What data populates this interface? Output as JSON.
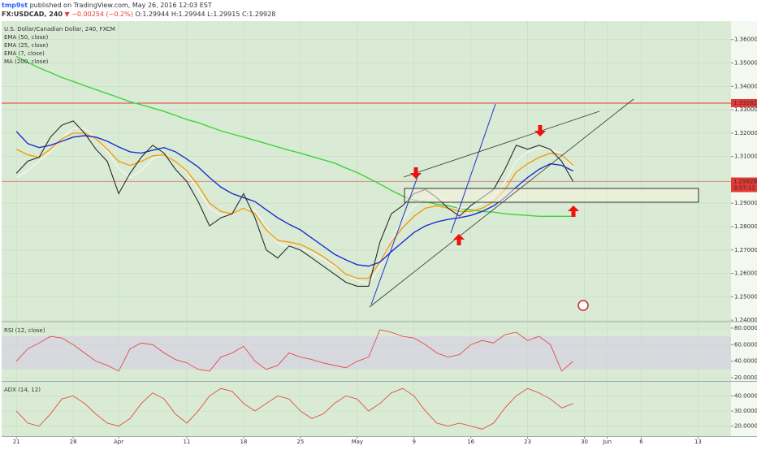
{
  "header": {
    "author": "tmp9st",
    "published": "published on TradingView.com, May 26, 2016 12:03 EST",
    "symbol": "FX:USDCAD, 240",
    "change": "▼ −0.00254 (−0.2%)",
    "ohlc": "O:1.29944 H:1.29944 L:1.29915 C:1.29928"
  },
  "chart_data": [
    {
      "type": "line",
      "title": "U.S. Dollar/Canadian Dollar, 240, FXCM",
      "legend": "top-left",
      "grid": true,
      "x": [
        0,
        1,
        2,
        3,
        4,
        5,
        6,
        7,
        8,
        9,
        10,
        11,
        12,
        13,
        14,
        15,
        16,
        17,
        18,
        19,
        20,
        21,
        22,
        23,
        24,
        25,
        26,
        27,
        28,
        29,
        30,
        31,
        32,
        33,
        34,
        35,
        36,
        37,
        38,
        39,
        40,
        41,
        42,
        43,
        44,
        45,
        46,
        47,
        48,
        49
      ],
      "xlim": [
        -1.3,
        62.9
      ],
      "xticks": [
        {
          "value": 0,
          "label": "21"
        },
        {
          "value": 5,
          "label": "28"
        },
        {
          "value": 9,
          "label": "Apr"
        },
        {
          "value": 15,
          "label": "11"
        },
        {
          "value": 20,
          "label": "18"
        },
        {
          "value": 25,
          "label": "25"
        },
        {
          "value": 30,
          "label": "May"
        },
        {
          "value": 35,
          "label": "9"
        },
        {
          "value": 40,
          "label": "16"
        },
        {
          "value": 45,
          "label": "23"
        },
        {
          "value": 50,
          "label": "30"
        },
        {
          "value": 52,
          "label": "Jun"
        },
        {
          "value": 55,
          "label": "6"
        },
        {
          "value": 60,
          "label": "13"
        }
      ],
      "ylim": [
        1.2397,
        1.3679
      ],
      "yticks": [
        {
          "value": 1.24,
          "label": "1.24000"
        },
        {
          "value": 1.25,
          "label": "1.25000"
        },
        {
          "value": 1.26,
          "label": "1.26000"
        },
        {
          "value": 1.27,
          "label": "1.27000"
        },
        {
          "value": 1.28,
          "label": "1.28000"
        },
        {
          "value": 1.29,
          "label": "1.29000"
        },
        {
          "value": 1.3,
          "label": "1.30000"
        },
        {
          "value": 1.31,
          "label": "1.31000"
        },
        {
          "value": 1.32,
          "label": "1.32000"
        },
        {
          "value": 1.33,
          "label": "1.33000"
        },
        {
          "value": 1.34,
          "label": "1.34000"
        },
        {
          "value": 1.35,
          "label": "1.35000"
        },
        {
          "value": 1.36,
          "label": "1.36000"
        }
      ],
      "hlines": [
        {
          "value": 1.33282,
          "color": "#e53935"
        },
        {
          "value": 1.29928,
          "color": "#e53935",
          "timer": "3:57:12"
        }
      ],
      "color": "#2b2b2b",
      "values": [
        1.3028,
        1.308,
        1.3097,
        1.3183,
        1.3234,
        1.3252,
        1.32,
        1.3131,
        1.3079,
        1.2941,
        1.3028,
        1.3097,
        1.3148,
        1.3114,
        1.3045,
        1.2993,
        1.2907,
        1.2803,
        1.2838,
        1.2855,
        1.2941,
        1.2838,
        1.27,
        1.2666,
        1.2717,
        1.27,
        1.2666,
        1.2631,
        1.2597,
        1.2562,
        1.2545,
        1.2545,
        1.2734,
        1.2855,
        1.289,
        1.2941,
        1.2959,
        1.2924,
        1.2879,
        1.2845,
        1.289,
        1.2924,
        1.2959,
        1.3045,
        1.3148,
        1.3131,
        1.3148,
        1.3131,
        1.3079,
        1.2993
      ],
      "series": [
        {
          "name": "EMA (50, close)",
          "color": "#1f2ecf",
          "values": [
            1.3207,
            1.3155,
            1.3138,
            1.3148,
            1.3165,
            1.3183,
            1.3189,
            1.3183,
            1.3165,
            1.3141,
            1.312,
            1.3114,
            1.3127,
            1.3138,
            1.312,
            1.3089,
            1.3055,
            1.301,
            1.2969,
            1.2941,
            1.2924,
            1.2907,
            1.2872,
            1.2838,
            1.281,
            1.2786,
            1.2751,
            1.2717,
            1.2682,
            1.2658,
            1.2637,
            1.2631,
            1.2648,
            1.2693,
            1.2734,
            1.2775,
            1.2803,
            1.282,
            1.2831,
            1.2838,
            1.2848,
            1.2865,
            1.2889,
            1.2924,
            1.2969,
            1.301,
            1.3045,
            1.3069,
            1.3062,
            1.3038
          ]
        },
        {
          "name": "EMA (25, close)",
          "color": "#f39c12",
          "values": [
            1.3131,
            1.3107,
            1.3096,
            1.3131,
            1.3176,
            1.32,
            1.32,
            1.3176,
            1.3131,
            1.3079,
            1.3062,
            1.3079,
            1.3103,
            1.3107,
            1.3079,
            1.3038,
            1.2976,
            1.29,
            1.2865,
            1.2855,
            1.2879,
            1.2855,
            1.2786,
            1.2741,
            1.2734,
            1.2724,
            1.27,
            1.2672,
            1.2637,
            1.2596,
            1.2579,
            1.2579,
            1.2648,
            1.2734,
            1.2796,
            1.2844,
            1.2879,
            1.2889,
            1.2879,
            1.2865,
            1.2865,
            1.2879,
            1.2907,
            1.2958,
            1.3034,
            1.3069,
            1.3096,
            1.3114,
            1.3107,
            1.3062
          ]
        },
        {
          "name": "EMA (7, close)",
          "color": "#f4f4ee",
          "values": [
            1.301,
            1.304,
            1.308,
            1.312,
            1.318,
            1.322,
            1.322,
            1.318,
            1.312,
            1.305,
            1.301,
            1.304,
            1.309,
            1.311,
            1.308,
            1.303,
            1.296,
            1.288,
            1.285,
            1.285,
            1.288,
            1.287,
            1.28,
            1.273,
            1.271,
            1.2705,
            1.269,
            1.266,
            1.263,
            1.2595,
            1.257,
            1.2555,
            1.263,
            1.274,
            1.283,
            1.289,
            1.2925,
            1.293,
            1.2905,
            1.288,
            1.288,
            1.29,
            1.293,
            1.299,
            1.308,
            1.312,
            1.3135,
            1.3135,
            1.311,
            1.305
          ]
        },
        {
          "name": "MA (200, close)",
          "color": "#3ed33e",
          "values": [
            1.3528,
            1.3503,
            1.3479,
            1.3459,
            1.3438,
            1.3421,
            1.3403,
            1.3386,
            1.3369,
            1.3352,
            1.3334,
            1.3321,
            1.3307,
            1.3293,
            1.3276,
            1.3258,
            1.3245,
            1.3227,
            1.321,
            1.3196,
            1.3183,
            1.3169,
            1.3155,
            1.3141,
            1.3127,
            1.3114,
            1.31,
            1.3086,
            1.3072,
            1.3051,
            1.3031,
            1.3007,
            1.2982,
            1.2955,
            1.2931,
            1.2913,
            1.2907,
            1.2896,
            1.2889,
            1.2879,
            1.2872,
            1.2865,
            1.2862,
            1.2855,
            1.2851,
            1.2848,
            1.2844,
            1.2844,
            1.2844,
            1.2844
          ]
        }
      ]
    },
    {
      "type": "line",
      "title": "RSI (12, close)",
      "grid": true,
      "color": "#e53935",
      "ylim": [
        16.1,
        86.8
      ],
      "band": [
        30,
        70
      ],
      "yticks": [
        {
          "value": 20,
          "label": "20.0000"
        },
        {
          "value": 40,
          "label": "40.0000"
        },
        {
          "value": 60,
          "label": "60.0000"
        },
        {
          "value": 80,
          "label": "80.0000"
        }
      ],
      "values": [
        40,
        55,
        62,
        70,
        68,
        60,
        50,
        40,
        35,
        28,
        55,
        62,
        60,
        50,
        42,
        38,
        30,
        28,
        45,
        50,
        58,
        40,
        30,
        35,
        50,
        45,
        42,
        38,
        35,
        32,
        40,
        45,
        78,
        75,
        70,
        68,
        60,
        50,
        45,
        48,
        60,
        65,
        62,
        72,
        75,
        65,
        70,
        60,
        28,
        40
      ]
    },
    {
      "type": "line",
      "title": "ADX (14, 12)",
      "grid": true,
      "color": "#e53935",
      "ylim": [
        13.3,
        49.4
      ],
      "yticks": [
        {
          "value": 20,
          "label": "20.0000"
        },
        {
          "value": 30,
          "label": "30.0000"
        },
        {
          "value": 40,
          "label": "40.0000"
        }
      ],
      "values": [
        30,
        22,
        20,
        28,
        38,
        40,
        35,
        28,
        22,
        20,
        25,
        35,
        42,
        38,
        28,
        22,
        30,
        40,
        45,
        43,
        35,
        30,
        35,
        40,
        38,
        30,
        25,
        28,
        35,
        40,
        38,
        30,
        35,
        42,
        45,
        40,
        30,
        22,
        20,
        22,
        20,
        18,
        22,
        32,
        40,
        45,
        42,
        38,
        32,
        35
      ]
    }
  ]
}
